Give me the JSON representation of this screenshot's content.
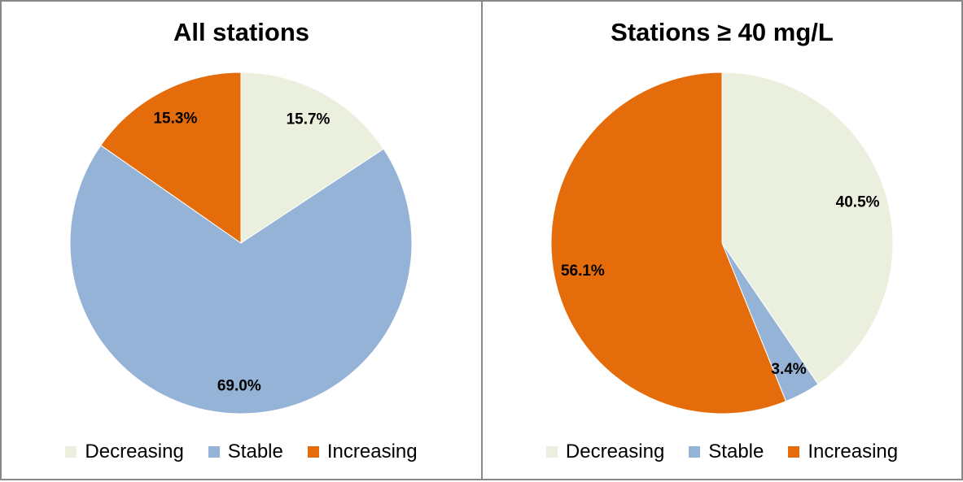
{
  "chart_data": [
    {
      "type": "pie",
      "title": "All stations",
      "categories": [
        "Decreasing",
        "Stable",
        "Increasing"
      ],
      "values": [
        15.7,
        69.0,
        15.3
      ],
      "data_labels": [
        "15.7%",
        "69.0%",
        "15.3%"
      ],
      "colors": [
        "#ebf0de",
        "#95b3d7",
        "#e46c0a"
      ],
      "legend": "bottom"
    },
    {
      "type": "pie",
      "title": "Stations ≥ 40 mg/L",
      "categories": [
        "Decreasing",
        "Stable",
        "Increasing"
      ],
      "values": [
        40.5,
        3.4,
        56.1
      ],
      "data_labels": [
        "40.5%",
        "3.4%",
        "56.1%"
      ],
      "colors": [
        "#ebf0de",
        "#95b3d7",
        "#e46c0a"
      ],
      "legend": "bottom"
    }
  ]
}
